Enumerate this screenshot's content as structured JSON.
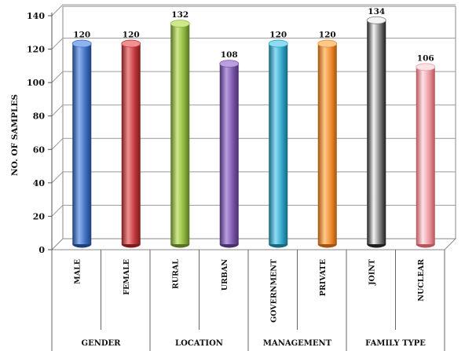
{
  "chart_data": {
    "type": "bar",
    "style": "3d-cylinder",
    "ylabel": "NO. OF SAMPLES",
    "xlabel": "",
    "ylim": [
      0,
      140
    ],
    "yticks": [
      0,
      20,
      40,
      60,
      80,
      100,
      120,
      140
    ],
    "grid": true,
    "categories": [
      "MALE",
      "FEMALE",
      "RURAL",
      "URBAN",
      "GOVERNMENT",
      "PRIVATE",
      "JOINT",
      "NUCLEAR"
    ],
    "values": [
      120,
      120,
      132,
      108,
      120,
      120,
      134,
      106
    ],
    "groups": [
      {
        "label": "GENDER",
        "span": 2
      },
      {
        "label": "LOCATION",
        "span": 2
      },
      {
        "label": "MANAGEMENT",
        "span": 2
      },
      {
        "label": "FAMILY TYPE",
        "span": 2
      }
    ],
    "colors": [
      {
        "base": "#3d6fc0",
        "light": "#8fb3ee",
        "dark": "#1e3f7a"
      },
      {
        "base": "#c0393b",
        "light": "#f09092",
        "dark": "#7a1c1d"
      },
      {
        "base": "#8fb83e",
        "light": "#cfe88e",
        "dark": "#567221"
      },
      {
        "base": "#7b55a8",
        "light": "#b99ee0",
        "dark": "#4a2f6e"
      },
      {
        "base": "#2fa5c8",
        "light": "#8fdcf2",
        "dark": "#16677f"
      },
      {
        "base": "#f08a2c",
        "light": "#ffc98a",
        "dark": "#a5540f"
      },
      {
        "base": "#7a7a7a",
        "light": "#f4f4f4",
        "dark": "#1e1e1e"
      },
      {
        "base": "#e99aa0",
        "light": "#fde3e5",
        "dark": "#b8525b"
      }
    ]
  }
}
